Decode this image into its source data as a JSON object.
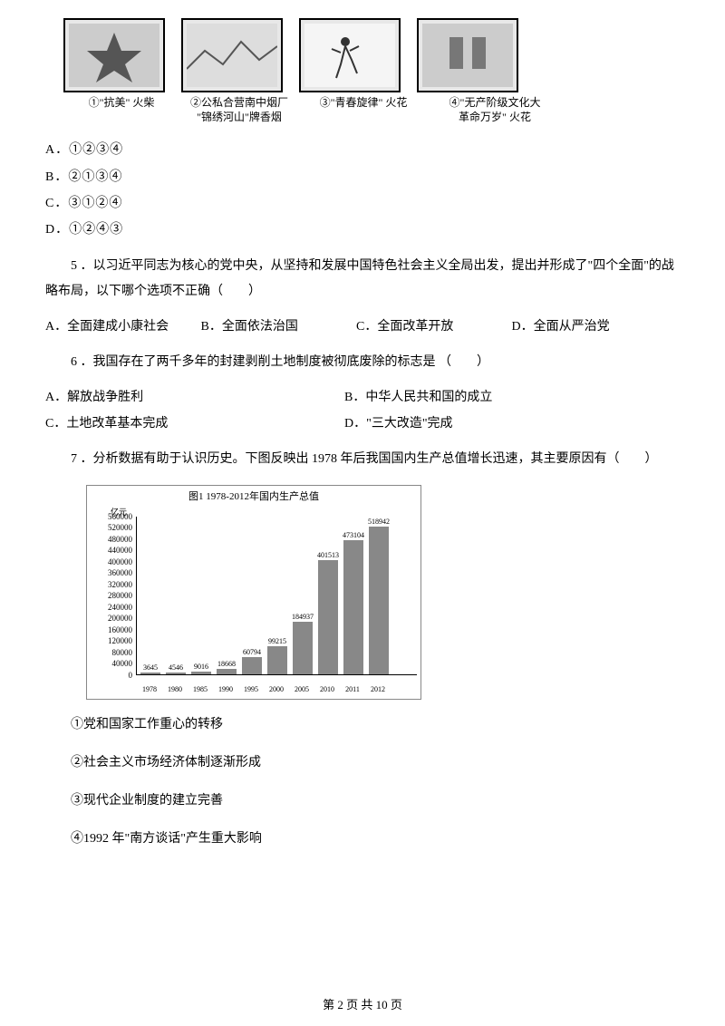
{
  "images": {
    "captions": [
      "①\"抗美\" 火柴",
      "②公私合营南中烟厂\n\"锦绣河山\"牌香烟",
      "③\"青春旋律\" 火花",
      "④\"无产阶级文化大\n革命万岁\" 火花"
    ]
  },
  "q4": {
    "options": {
      "A": "A．①②③④",
      "B": "B．②①③④",
      "C": "C．③①②④",
      "D": "D．①②④③"
    }
  },
  "q5": {
    "text": "5 ．以习近平同志为核心的党中央，从坚持和发展中国特色社会主义全局出发，提出并形成了\"四个全面\"的战略布局，以下哪个选项不正确（　　）",
    "options": {
      "A": "A．全面建成小康社会",
      "B": "B．全面依法治国",
      "C": "C．全面改革开放",
      "D": "D．全面从严治党"
    }
  },
  "q6": {
    "text": "6 ．我国存在了两千多年的封建剥削土地制度被彻底废除的标志是 （　　）",
    "options": {
      "A": "A．解放战争胜利",
      "B": "B．中华人民共和国的成立",
      "C": "C．土地改革基本完成",
      "D": "D．\"三大改造\"完成"
    }
  },
  "q7": {
    "text": "7 ．分析数据有助于认识历史。下图反映出 1978 年后我国国内生产总值增长迅速，其主要原因有（　　）",
    "statements": [
      "①党和国家工作重心的转移",
      "②社会主义市场经济体制逐渐形成",
      "③现代企业制度的建立完善",
      "④1992 年\"南方谈话\"产生重大影响"
    ]
  },
  "chart": {
    "title": "图1 1978-2012年国内生产总值",
    "y_unit": "亿元",
    "y_max": 560000,
    "y_ticks": [
      0,
      40000,
      80000,
      120000,
      160000,
      200000,
      240000,
      280000,
      320000,
      360000,
      400000,
      440000,
      480000,
      520000,
      560000
    ],
    "categories": [
      "1978",
      "1980",
      "1985",
      "1990",
      "1995",
      "2000",
      "2005",
      "2010",
      "2011",
      "2012"
    ],
    "values": [
      3645,
      4546,
      9016,
      18668,
      60794,
      99215,
      184937,
      401513,
      473104,
      518942
    ],
    "bar_color": "#888888",
    "axis_color": "#000000",
    "background": "#ffffff"
  },
  "footer": "第 2 页 共 10 页"
}
